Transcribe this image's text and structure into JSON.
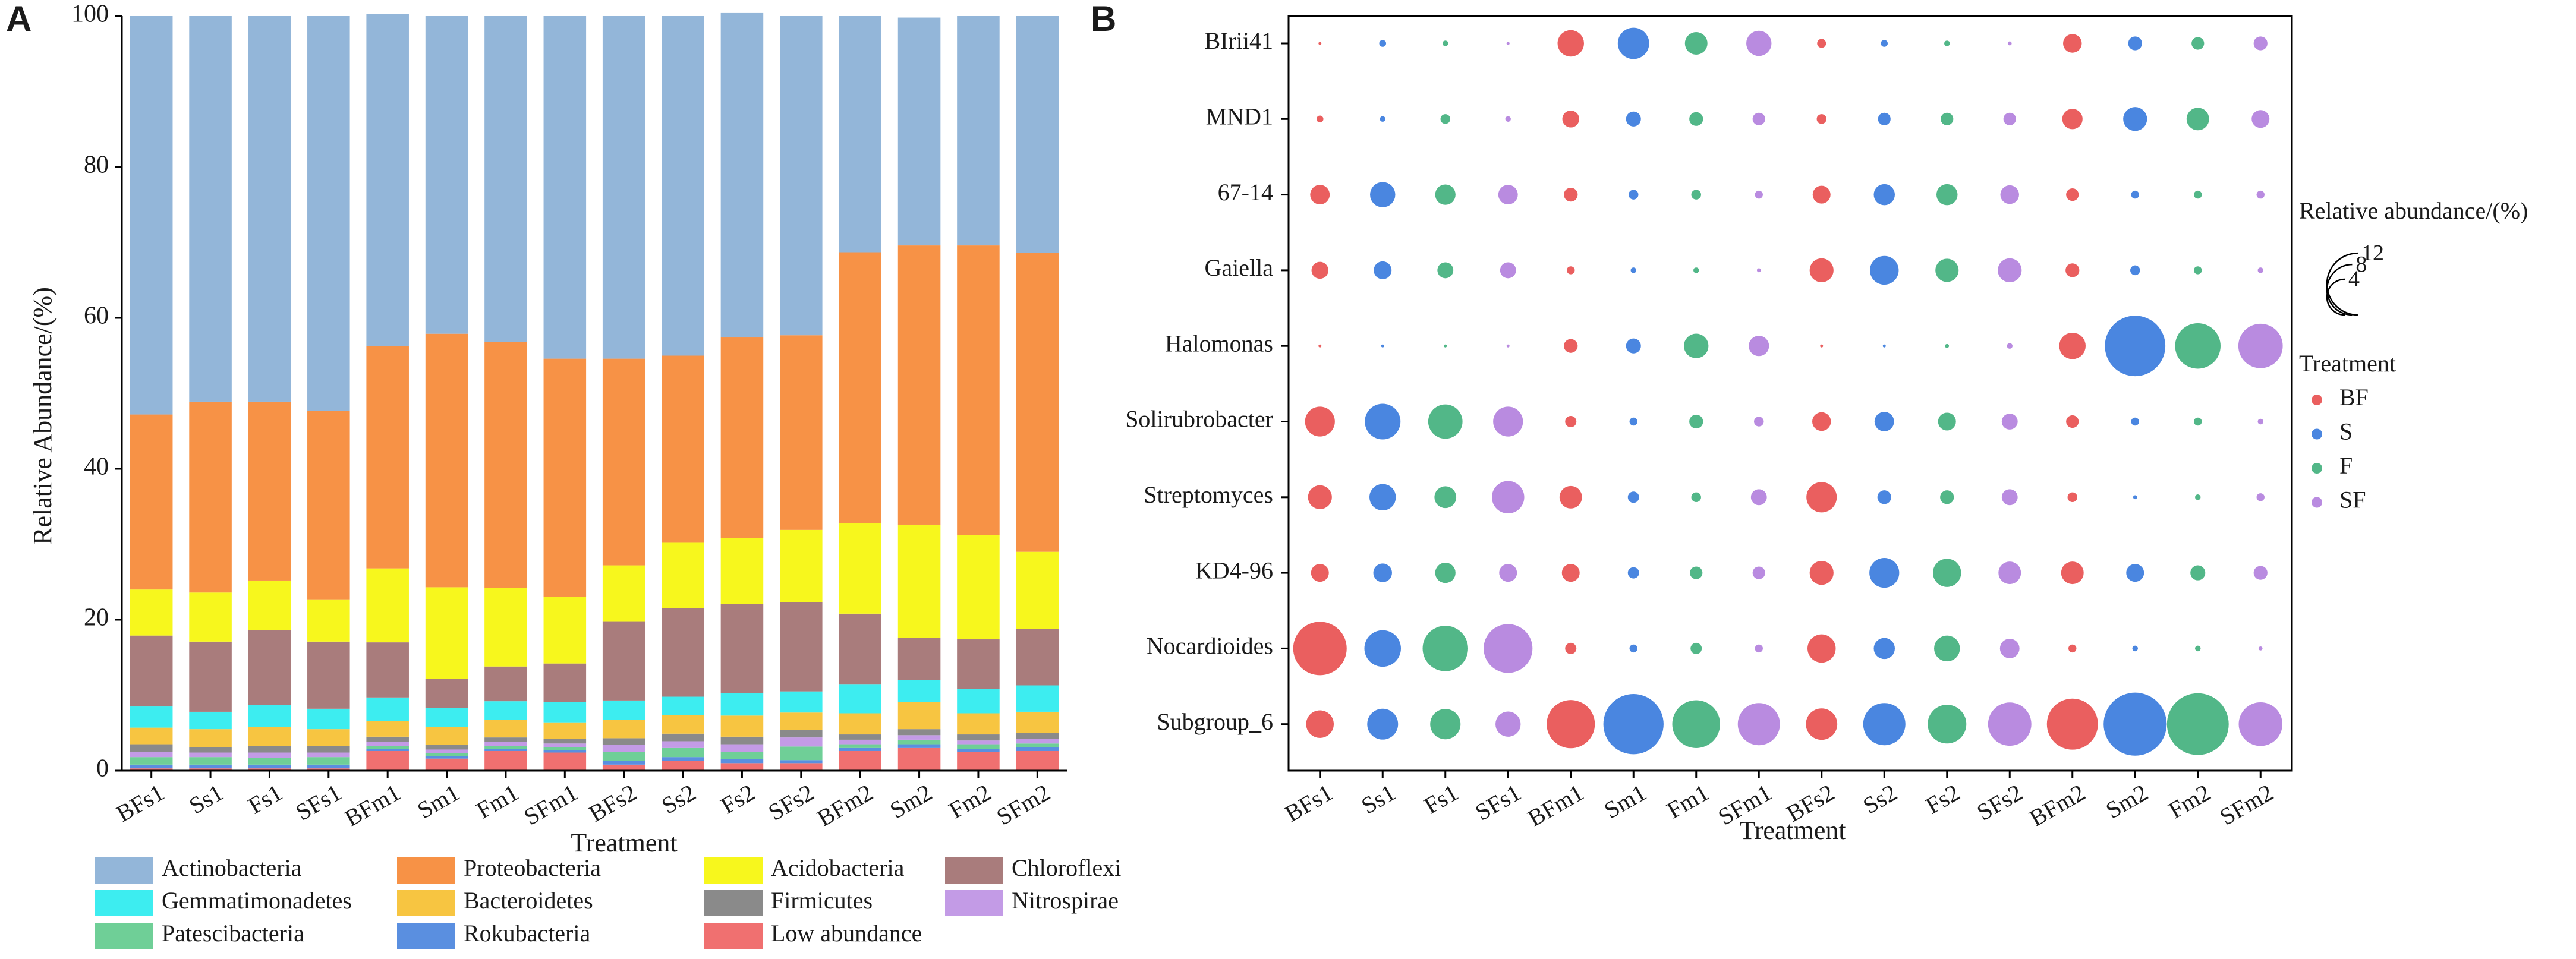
{
  "chart_data": [
    {
      "panel": "A",
      "type": "bar",
      "stacked": true,
      "xlabel": "Treatment",
      "ylabel": "Relative Abundance/(%)",
      "ylim": [
        0,
        100
      ],
      "yticks": [
        0,
        20,
        40,
        60,
        80,
        100
      ],
      "categories": [
        "BFs1",
        "Ss1",
        "Fs1",
        "SFs1",
        "BFm1",
        "Sm1",
        "Fm1",
        "SFm1",
        "BFs2",
        "Ss2",
        "Fs2",
        "SFs2",
        "BFm2",
        "Sm2",
        "Fm2",
        "SFm2"
      ],
      "legend_position": "bottom",
      "series": [
        {
          "name": "Low abundance",
          "color": "#f07070",
          "values": [
            0.3,
            0.3,
            0.3,
            0.3,
            2.6,
            1.6,
            2.6,
            2.4,
            0.8,
            1.3,
            1.0,
            1.0,
            2.6,
            3.0,
            2.5,
            2.6
          ]
        },
        {
          "name": "Rokubacteria",
          "color": "#5a8fe0",
          "values": [
            0.5,
            0.5,
            0.5,
            0.5,
            0.3,
            0.3,
            0.3,
            0.3,
            0.5,
            0.5,
            0.5,
            0.4,
            0.4,
            0.5,
            0.4,
            0.5
          ]
        },
        {
          "name": "Patescibacteria",
          "color": "#6fcf97",
          "values": [
            1.0,
            1.0,
            0.9,
            1.0,
            0.4,
            0.4,
            0.4,
            0.4,
            1.2,
            1.2,
            1.0,
            1.8,
            0.5,
            0.6,
            0.6,
            0.5
          ]
        },
        {
          "name": "Nitrospirae",
          "color": "#c39be6",
          "values": [
            0.7,
            0.6,
            0.7,
            0.6,
            0.5,
            0.5,
            0.5,
            0.5,
            0.9,
            0.9,
            1.0,
            1.2,
            0.6,
            0.6,
            0.5,
            0.6
          ]
        },
        {
          "name": "Firmicutes",
          "color": "#8a8a8a",
          "values": [
            1.0,
            0.7,
            0.9,
            0.9,
            0.7,
            0.6,
            0.6,
            0.6,
            0.9,
            1.0,
            1.0,
            1.0,
            0.7,
            0.8,
            0.8,
            0.8
          ]
        },
        {
          "name": "Bacteroidetes",
          "color": "#f7c541",
          "values": [
            2.2,
            2.4,
            2.5,
            2.2,
            2.1,
            2.4,
            2.3,
            2.2,
            2.4,
            2.5,
            2.8,
            2.3,
            2.8,
            3.6,
            2.8,
            2.8
          ]
        },
        {
          "name": "Gemmatimonadetes",
          "color": "#3dedf0",
          "values": [
            2.8,
            2.3,
            2.9,
            2.7,
            3.1,
            2.5,
            2.5,
            2.7,
            2.6,
            2.4,
            3.0,
            2.8,
            3.8,
            2.9,
            3.2,
            3.5
          ]
        },
        {
          "name": "Chloroflexi",
          "color": "#a97c7c",
          "values": [
            9.4,
            9.3,
            9.9,
            8.9,
            7.3,
            3.9,
            4.6,
            5.1,
            10.5,
            11.7,
            11.8,
            11.8,
            9.4,
            5.6,
            6.6,
            7.5
          ]
        },
        {
          "name": "Acidobacteria",
          "color": "#f7f71d",
          "values": [
            6.1,
            6.5,
            6.6,
            5.6,
            9.8,
            12.1,
            10.4,
            8.8,
            7.4,
            8.7,
            8.7,
            9.6,
            12.0,
            15.0,
            13.8,
            10.2
          ]
        },
        {
          "name": "Proteobacteria",
          "color": "#f79246",
          "values": [
            23.2,
            25.3,
            23.7,
            25.0,
            29.5,
            33.6,
            32.6,
            31.6,
            27.4,
            24.8,
            26.6,
            25.8,
            35.9,
            37.0,
            38.4,
            39.6
          ]
        },
        {
          "name": "Actinobacteria",
          "color": "#93b6d9",
          "values": [
            52.8,
            51.1,
            51.1,
            52.3,
            44.0,
            42.1,
            43.2,
            45.4,
            45.4,
            45.0,
            43.0,
            42.3,
            31.3,
            30.2,
            30.4,
            31.4
          ]
        }
      ],
      "legend": [
        "Actinobacteria",
        "Proteobacteria",
        "Acidobacteria",
        "Chloroflexi",
        "Gemmatimonadetes",
        "Bacteroidetes",
        "Firmicutes",
        "Nitrospirae",
        "Patescibacteria",
        "Rokubacteria",
        "Low abundance"
      ]
    },
    {
      "panel": "B",
      "type": "scatter",
      "subtype": "bubble",
      "xlabel": "Treatment",
      "categories": [
        "BFs1",
        "Ss1",
        "Fs1",
        "SFs1",
        "BFm1",
        "Sm1",
        "Fm1",
        "SFm1",
        "BFs2",
        "Ss2",
        "Fs2",
        "SFs2",
        "BFm2",
        "Sm2",
        "Fm2",
        "SFm2"
      ],
      "genera": [
        "BIrii41",
        "MND1",
        "67-14",
        "Gaiella",
        "Halomonas",
        "Solirubrobacter",
        "Streptomyces",
        "KD4-96",
        "Nocardioides",
        "Subgroup_6"
      ],
      "treatment_pattern": [
        "BF",
        "S",
        "F",
        "SF",
        "BF",
        "S",
        "F",
        "SF",
        "BF",
        "S",
        "F",
        "SF",
        "BF",
        "S",
        "F",
        "SF"
      ],
      "treatment_colors": {
        "BF": "#ea5f5f",
        "S": "#4a86e0",
        "F": "#52b788",
        "SF": "#b98be0"
      },
      "size_legend_title": "Relative abundance/(%)",
      "size_legend_values": [
        12,
        8,
        4
      ],
      "color_legend_title": "Treatment",
      "color_legend": [
        "BF",
        "S",
        "F",
        "SF"
      ],
      "abundance": {
        "BIrii41": [
          0.02,
          0.15,
          0.1,
          0.03,
          2.2,
          3.1,
          1.6,
          2.0,
          0.25,
          0.15,
          0.1,
          0.05,
          1.1,
          0.6,
          0.5,
          0.6
        ],
        "MND1": [
          0.15,
          0.1,
          0.3,
          0.1,
          0.9,
          0.7,
          0.6,
          0.5,
          0.3,
          0.5,
          0.5,
          0.5,
          1.3,
          1.8,
          1.6,
          1.0
        ],
        "67-14": [
          1.2,
          2.0,
          1.3,
          1.2,
          0.6,
          0.3,
          0.3,
          0.2,
          1.0,
          1.4,
          1.4,
          1.1,
          0.5,
          0.2,
          0.2,
          0.2
        ],
        "Gaiella": [
          0.9,
          1.0,
          0.8,
          0.8,
          0.2,
          0.1,
          0.1,
          0.05,
          1.8,
          2.6,
          1.7,
          1.8,
          0.6,
          0.3,
          0.2,
          0.1
        ],
        "Halomonas": [
          0.02,
          0.0,
          0.01,
          0.01,
          0.6,
          0.7,
          1.9,
          1.3,
          0.02,
          0.01,
          0.05,
          0.1,
          2.2,
          11.5,
          6.5,
          6.2
        ],
        "Solirubrobacter": [
          2.8,
          4.0,
          3.7,
          2.8,
          0.4,
          0.2,
          0.6,
          0.3,
          1.1,
          1.2,
          1.0,
          0.8,
          0.5,
          0.2,
          0.2,
          0.1
        ],
        "Streptomyces": [
          1.8,
          2.2,
          1.5,
          3.3,
          1.6,
          0.4,
          0.3,
          0.8,
          2.9,
          0.6,
          0.6,
          0.8,
          0.3,
          0.05,
          0.1,
          0.2
        ],
        "KD4-96": [
          1.0,
          1.1,
          1.3,
          1.0,
          1.0,
          0.4,
          0.5,
          0.5,
          1.8,
          2.8,
          2.5,
          1.6,
          1.6,
          1.0,
          0.7,
          0.6
        ],
        "Nocardioides": [
          9.0,
          4.2,
          6.5,
          7.5,
          0.4,
          0.2,
          0.4,
          0.2,
          2.5,
          1.4,
          2.1,
          1.2,
          0.2,
          0.1,
          0.1,
          0.05
        ],
        "Subgroup_6": [
          2.4,
          3.0,
          2.9,
          2.0,
          7.3,
          11.4,
          7.2,
          5.6,
          3.1,
          5.6,
          4.7,
          5.9,
          8.2,
          12.5,
          12.0,
          6.0
        ]
      }
    }
  ],
  "labels": {
    "panel_a": "A",
    "panel_b": "B",
    "a_xlabel": "Treatment",
    "a_ylabel": "Relative Abundance/(%)",
    "b_xlabel": "Treatment",
    "b_size_title": "Relative abundance/(%)",
    "b_color_title": "Treatment"
  }
}
